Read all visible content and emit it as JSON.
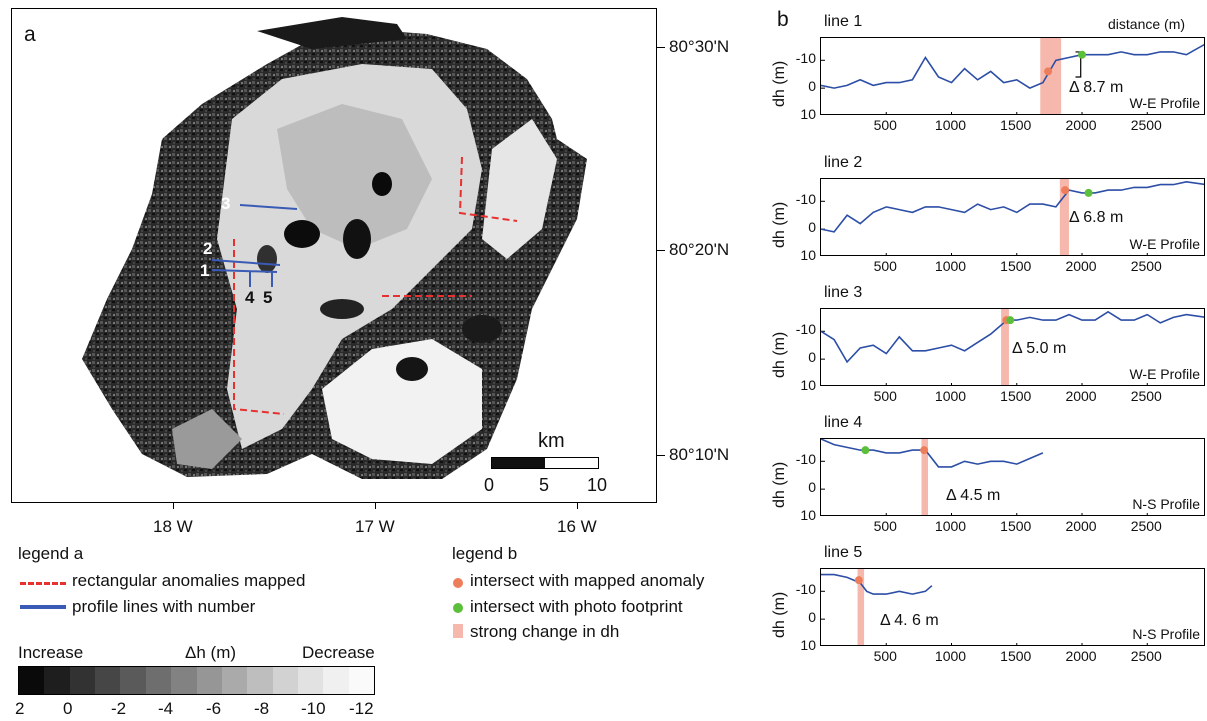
{
  "panel_a": {
    "letter": "a",
    "lat_labels": [
      "80°30'N",
      "80°20'N",
      "80°10'N"
    ],
    "lon_labels": [
      "18 W",
      "17 W",
      "16 W"
    ],
    "profile_numbers": [
      "3",
      "2",
      "1",
      "4",
      "5"
    ],
    "scale_unit": "km",
    "scale_ticks": [
      "0",
      "5",
      "10"
    ]
  },
  "panel_b": {
    "letter": "b",
    "distance_label": "distance (m)",
    "ylabel": "dh (m)"
  },
  "legend_a": {
    "title": "legend a",
    "items": [
      "rectangular anomalies mapped",
      "profile lines with number"
    ],
    "colors": [
      "#e8302e",
      "#3a5bb5"
    ]
  },
  "colorbar": {
    "left_label": "Increase",
    "center_label": "Δh (m)",
    "right_label": "Decrease",
    "ticks": [
      "2",
      "0",
      "-2",
      "-4",
      "-6",
      "-8",
      "-10",
      "-12"
    ],
    "colors": [
      "#0a0a0a",
      "#1e1e1e",
      "#323232",
      "#464646",
      "#5a5a5a",
      "#6e6e6e",
      "#828282",
      "#969696",
      "#aaaaaa",
      "#bebebe",
      "#d2d2d2",
      "#e2e2e2",
      "#f0f0f0",
      "#fafafa"
    ]
  },
  "legend_b": {
    "title": "legend b",
    "items": [
      "intersect with mapped anomaly",
      "intersect with photo footprint",
      "strong change in dh"
    ],
    "colors": [
      "#ee7e5b",
      "#5bbf3a",
      "#f6b8ac"
    ]
  },
  "chart_data": [
    {
      "type": "line",
      "title": "line 1",
      "profile": "W-E Profile",
      "delta": "Δ 8.7 m",
      "xlim": [
        0,
        2950
      ],
      "ylim": [
        10,
        -18
      ],
      "x_ticks": [
        500,
        1000,
        1500,
        2000,
        2500
      ],
      "y_ticks": [
        -10,
        0,
        10
      ],
      "band": [
        1680,
        1840
      ],
      "orange": [
        1740,
        -6
      ],
      "green": [
        2000,
        -12
      ],
      "series": [
        {
          "x": [
            0,
            100,
            200,
            300,
            400,
            500,
            600,
            700,
            800,
            900,
            1000,
            1100,
            1200,
            1300,
            1400,
            1500,
            1600,
            1700,
            1750,
            1800,
            1900,
            2000,
            2100,
            2200,
            2300,
            2400,
            2500,
            2600,
            2700,
            2800,
            2950
          ],
          "y": [
            -1,
            0,
            -1,
            -3,
            -1,
            -2,
            -2,
            -3,
            -11,
            -4,
            -2,
            -7,
            -3,
            -6,
            -2,
            -3,
            0,
            -2,
            -6,
            -10,
            -11,
            -12,
            -12,
            -12,
            -13,
            -12,
            -12,
            -13,
            -13,
            -12,
            -16
          ]
        }
      ]
    },
    {
      "type": "line",
      "title": "line 2",
      "profile": "W-E Profile",
      "delta": "Δ 6.8 m",
      "xlim": [
        0,
        2950
      ],
      "ylim": [
        10,
        -18
      ],
      "x_ticks": [
        500,
        1000,
        1500,
        2000,
        2500
      ],
      "y_ticks": [
        -10,
        0,
        10
      ],
      "band": [
        1830,
        1900
      ],
      "orange": [
        1870,
        -14
      ],
      "green": [
        2050,
        -13
      ],
      "series": [
        {
          "x": [
            0,
            100,
            200,
            300,
            400,
            500,
            600,
            700,
            800,
            900,
            1000,
            1100,
            1200,
            1300,
            1400,
            1500,
            1600,
            1700,
            1800,
            1850,
            1900,
            2000,
            2100,
            2200,
            2300,
            2400,
            2500,
            2600,
            2700,
            2800,
            2950
          ],
          "y": [
            0,
            1,
            -5,
            -2,
            -6,
            -8,
            -7,
            -6,
            -8,
            -8,
            -7,
            -6,
            -9,
            -7,
            -8,
            -6,
            -9,
            -9,
            -8,
            -11,
            -14,
            -13,
            -13,
            -14,
            -14,
            -15,
            -15,
            -16,
            -16,
            -17,
            -16
          ]
        }
      ]
    },
    {
      "type": "line",
      "title": "line 3",
      "profile": "W-E Profile",
      "delta": "Δ 5.0 m",
      "xlim": [
        0,
        2950
      ],
      "ylim": [
        10,
        -18
      ],
      "x_ticks": [
        500,
        1000,
        1500,
        2000,
        2500
      ],
      "y_ticks": [
        -10,
        0,
        10
      ],
      "band": [
        1380,
        1440
      ],
      "orange": [
        1420,
        -14
      ],
      "green": [
        1450,
        -14
      ],
      "series": [
        {
          "x": [
            0,
            100,
            200,
            300,
            400,
            500,
            600,
            700,
            800,
            900,
            1000,
            1100,
            1200,
            1300,
            1350,
            1400,
            1450,
            1500,
            1600,
            1700,
            1800,
            1900,
            2000,
            2100,
            2200,
            2300,
            2400,
            2500,
            2600,
            2700,
            2800,
            2950
          ],
          "y": [
            -10,
            -7,
            1,
            -4,
            -5,
            -2,
            -8,
            -3,
            -3,
            -4,
            -5,
            -3,
            -6,
            -9,
            -11,
            -13,
            -14,
            -14,
            -15,
            -14,
            -14,
            -16,
            -14,
            -14,
            -17,
            -14,
            -14,
            -16,
            -13,
            -15,
            -16,
            -15
          ]
        }
      ]
    },
    {
      "type": "line",
      "title": "line 4",
      "profile": "N-S Profile",
      "delta": "Δ 4.5 m",
      "xlim": [
        0,
        2950
      ],
      "ylim": [
        10,
        -18
      ],
      "x_ticks": [
        500,
        1000,
        1500,
        2000,
        2500
      ],
      "y_ticks": [
        -10,
        0,
        10
      ],
      "band": [
        770,
        820
      ],
      "orange": [
        790,
        -14
      ],
      "green": [
        340,
        -14
      ],
      "series": [
        {
          "x": [
            0,
            100,
            200,
            300,
            400,
            500,
            600,
            700,
            800,
            900,
            1000,
            1100,
            1200,
            1300,
            1400,
            1500,
            1600,
            1700
          ],
          "y": [
            -18,
            -16,
            -15,
            -14,
            -14,
            -13,
            -13,
            -14,
            -14,
            -8,
            -8,
            -10,
            -9,
            -10,
            -10,
            -9,
            -11,
            -13
          ]
        }
      ]
    },
    {
      "type": "line",
      "title": "line 5",
      "profile": "N-S Profile",
      "delta": "Δ 4. 6 m",
      "xlim": [
        0,
        2950
      ],
      "ylim": [
        10,
        -18
      ],
      "x_ticks": [
        500,
        1000,
        1500,
        2000,
        2500
      ],
      "y_ticks": [
        -10,
        0,
        10
      ],
      "band": [
        280,
        330
      ],
      "orange": [
        290,
        -14
      ],
      "green": null,
      "series": [
        {
          "x": [
            0,
            100,
            200,
            250,
            300,
            350,
            400,
            500,
            600,
            700,
            800,
            850
          ],
          "y": [
            -16,
            -16,
            -15,
            -14,
            -13,
            -10,
            -9,
            -9,
            -10,
            -9,
            -10,
            -12
          ]
        }
      ]
    }
  ]
}
